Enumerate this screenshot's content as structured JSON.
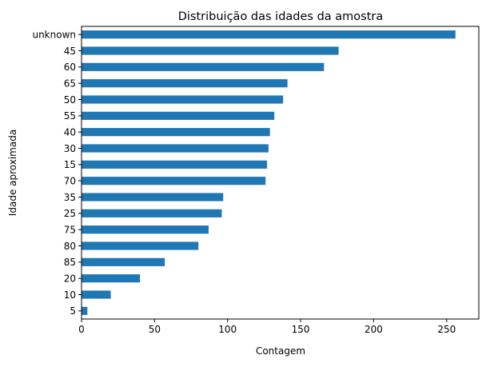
{
  "chart_data": {
    "type": "bar",
    "orientation": "horizontal",
    "title": "Distribuição das idades da amostra",
    "xlabel": "Contagem",
    "ylabel": "Idade aproximada",
    "xlim": [
      0,
      272
    ],
    "xticks": [
      0,
      50,
      100,
      150,
      200,
      250
    ],
    "grid": false,
    "legend": "none",
    "bar_color": "#1f77b4",
    "categories": [
      "unknown",
      "45",
      "60",
      "65",
      "50",
      "55",
      "40",
      "30",
      "15",
      "70",
      "35",
      "25",
      "75",
      "80",
      "85",
      "20",
      "10",
      "5"
    ],
    "values": [
      256,
      176,
      166,
      141,
      138,
      132,
      129,
      128,
      127,
      126,
      97,
      96,
      87,
      80,
      57,
      40,
      20,
      4
    ]
  }
}
